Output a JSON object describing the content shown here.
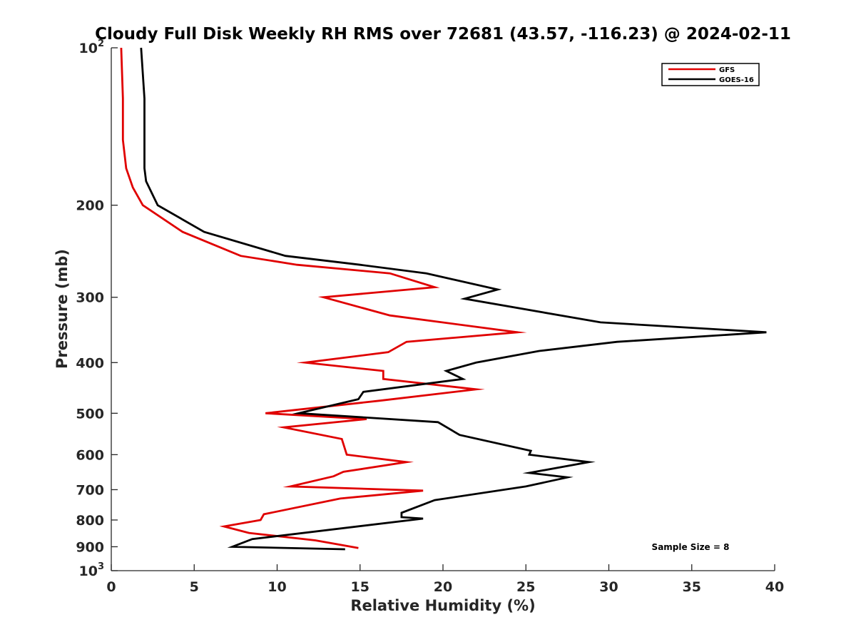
{
  "chart_data": {
    "type": "line",
    "title": "Cloudy Full Disk Weekly RH RMS over 72681 (43.57, -116.23) @ 2024-02-11",
    "xlabel": "Relative Humidity (%)",
    "ylabel": "Pressure (mb)",
    "xlim": [
      0,
      40
    ],
    "ylim": [
      100,
      1000
    ],
    "y_scale": "log",
    "y_reversed": true,
    "grid": false,
    "legend_position": "top-right",
    "x_ticks": [
      0,
      5,
      10,
      15,
      20,
      25,
      30,
      35,
      40
    ],
    "y_ticks": [
      {
        "value": 100,
        "base": "10",
        "exp": "2"
      },
      {
        "value": 200,
        "label": "200"
      },
      {
        "value": 300,
        "label": "300"
      },
      {
        "value": 400,
        "label": "400"
      },
      {
        "value": 500,
        "label": "500"
      },
      {
        "value": 600,
        "label": "600"
      },
      {
        "value": 700,
        "label": "700"
      },
      {
        "value": 800,
        "label": "800"
      },
      {
        "value": 900,
        "label": "900"
      },
      {
        "value": 1000,
        "base": "10",
        "exp": "3"
      }
    ],
    "annotation": "Sample Size = 8",
    "series": [
      {
        "name": "GFS",
        "color": "#e00000",
        "points": [
          [
            0.6,
            100
          ],
          [
            0.7,
            125
          ],
          [
            0.7,
            150
          ],
          [
            0.9,
            170
          ],
          [
            1.3,
            185
          ],
          [
            1.9,
            200
          ],
          [
            4.3,
            225
          ],
          [
            7.8,
            250
          ],
          [
            11.2,
            260
          ],
          [
            16.8,
            270
          ],
          [
            19.5,
            287
          ],
          [
            12.8,
            300
          ],
          [
            16.8,
            325
          ],
          [
            24.5,
            350
          ],
          [
            17.8,
            365
          ],
          [
            16.7,
            382
          ],
          [
            11.7,
            400
          ],
          [
            16.4,
            415
          ],
          [
            16.4,
            430
          ],
          [
            22.0,
            450
          ],
          [
            16.2,
            473
          ],
          [
            9.3,
            500
          ],
          [
            15.4,
            513
          ],
          [
            10.4,
            532
          ],
          [
            13.9,
            560
          ],
          [
            14.2,
            600
          ],
          [
            17.8,
            620
          ],
          [
            14.0,
            647
          ],
          [
            13.4,
            660
          ],
          [
            10.8,
            690
          ],
          [
            18.8,
            703
          ],
          [
            13.8,
            728
          ],
          [
            9.2,
            780
          ],
          [
            9.0,
            800
          ],
          [
            6.8,
            823
          ],
          [
            8.3,
            847
          ],
          [
            12.3,
            875
          ],
          [
            14.9,
            905
          ]
        ]
      },
      {
        "name": "GOES-16",
        "color": "#000000",
        "points": [
          [
            1.8,
            100
          ],
          [
            2.0,
            125
          ],
          [
            2.0,
            150
          ],
          [
            2.0,
            170
          ],
          [
            2.1,
            180
          ],
          [
            2.8,
            200
          ],
          [
            5.6,
            225
          ],
          [
            10.5,
            250
          ],
          [
            15.0,
            260
          ],
          [
            19.0,
            270
          ],
          [
            23.3,
            290
          ],
          [
            21.3,
            302
          ],
          [
            29.5,
            335
          ],
          [
            39.5,
            350
          ],
          [
            30.5,
            365
          ],
          [
            25.8,
            380
          ],
          [
            22.0,
            400
          ],
          [
            20.2,
            415
          ],
          [
            21.2,
            430
          ],
          [
            15.2,
            455
          ],
          [
            14.9,
            470
          ],
          [
            11.3,
            500
          ],
          [
            19.7,
            520
          ],
          [
            21.0,
            550
          ],
          [
            25.3,
            590
          ],
          [
            25.2,
            600
          ],
          [
            28.8,
            620
          ],
          [
            25.2,
            650
          ],
          [
            27.5,
            663
          ],
          [
            25.0,
            690
          ],
          [
            19.5,
            733
          ],
          [
            17.5,
            775
          ],
          [
            17.5,
            790
          ],
          [
            18.8,
            795
          ],
          [
            8.5,
            870
          ],
          [
            7.3,
            900
          ],
          [
            14.1,
            910
          ]
        ]
      }
    ]
  }
}
